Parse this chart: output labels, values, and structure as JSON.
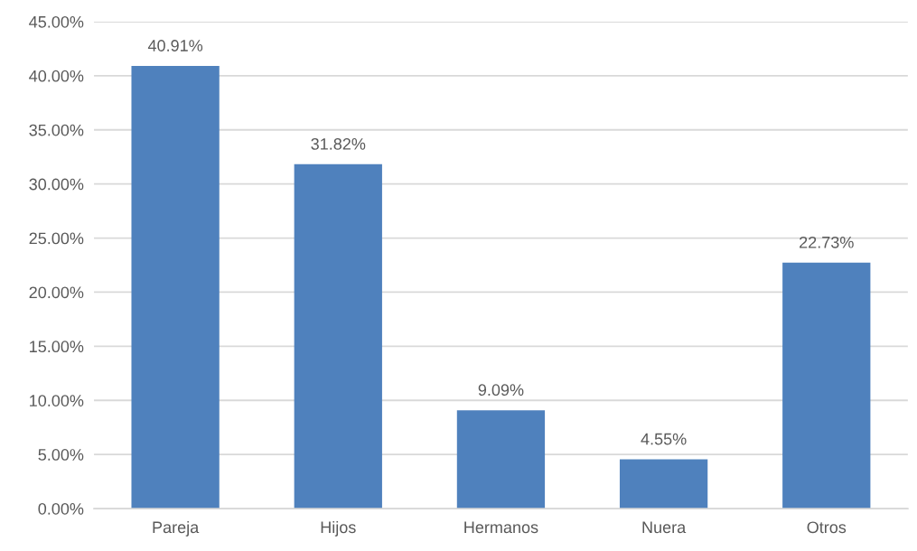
{
  "chart_data": {
    "type": "bar",
    "categories": [
      "Pareja",
      "Hijos",
      "Hermanos",
      "Nuera",
      "Otros"
    ],
    "values": [
      40.91,
      31.82,
      9.09,
      4.55,
      22.73
    ],
    "value_labels": [
      "40.91%",
      "31.82%",
      "9.09%",
      "4.55%",
      "22.73%"
    ],
    "color": "#4f81bd",
    "ylim": [
      0,
      45
    ],
    "yticks": [
      {
        "value": 0,
        "label": "0.00%"
      },
      {
        "value": 5,
        "label": "5.00%"
      },
      {
        "value": 10,
        "label": "10.00%"
      },
      {
        "value": 15,
        "label": "15.00%"
      },
      {
        "value": 20,
        "label": "20.00%"
      },
      {
        "value": 25,
        "label": "25.00%"
      },
      {
        "value": 30,
        "label": "30.00%"
      },
      {
        "value": 35,
        "label": "35.00%"
      },
      {
        "value": 40,
        "label": "40.00%"
      },
      {
        "value": 45,
        "label": "45.00%"
      }
    ],
    "grid": "y",
    "legend": false
  }
}
